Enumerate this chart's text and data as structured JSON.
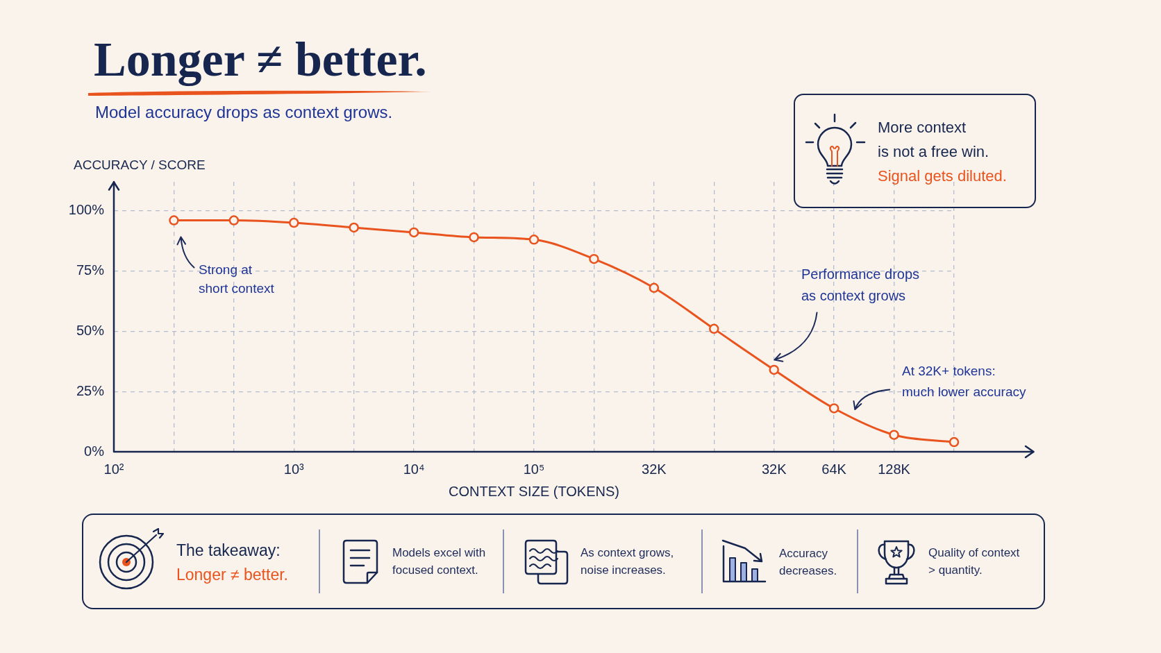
{
  "chart_data": {
    "type": "line",
    "title": "Longer ≠ better.",
    "subtitle": "Model accuracy drops as context grows.",
    "xlabel": "CONTEXT SIZE (TOKENS)",
    "ylabel": "ACCURACY / SCORE",
    "categories": [
      "10²",
      null,
      null,
      "10³",
      null,
      "10⁴",
      null,
      "10⁵",
      null,
      "32K",
      null,
      "32K",
      "64K",
      "128K",
      null
    ],
    "series": [
      {
        "color": "#e9531d",
        "values": [
          null,
          96,
          96,
          95,
          93,
          91,
          89,
          88,
          80,
          68,
          51,
          34,
          18,
          7,
          4
        ]
      }
    ],
    "ylim": [
      0,
      112
    ],
    "yticks": [
      {
        "value": 0,
        "label": "0%"
      },
      {
        "value": 25,
        "label": "25%"
      },
      {
        "value": 50,
        "label": "50%"
      },
      {
        "value": 75,
        "label": "75%"
      },
      {
        "value": 100,
        "label": "100%"
      }
    ],
    "grid": true,
    "marker": "circle",
    "line_style": "solid",
    "annotations": [
      "Strong at\nshort context",
      "Performance drops\nas context grows",
      "At 32K+ tokens:\nmuch lower accuracy",
      "More context\nis not a free win.",
      "Signal gets diluted.",
      "The takeaway:",
      "Longer ≠ better.",
      "Models excel with\nfocused context.",
      "As context grows,\nnoise increases.",
      "Accuracy\ndecreases.",
      "Quality of context\n> quantity."
    ]
  }
}
